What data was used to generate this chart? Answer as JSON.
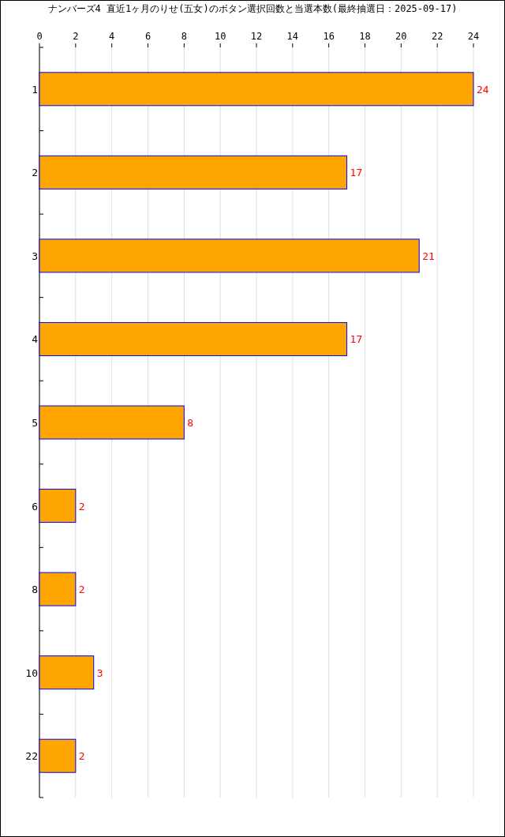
{
  "chart_data": {
    "type": "bar",
    "orientation": "horizontal",
    "title": "ナンバーズ4 直近1ヶ月のりせ(五女)のボタン選択回数と当選本数(最終抽選日：2025-09-17)",
    "categories": [
      "1",
      "2",
      "3",
      "4",
      "5",
      "6",
      "8",
      "10",
      "22"
    ],
    "values": [
      24,
      17,
      21,
      17,
      8,
      2,
      2,
      3,
      2
    ],
    "color": "#ffa500",
    "xlim": [
      0,
      24
    ],
    "xticks": [
      0,
      2,
      4,
      6,
      8,
      10,
      12,
      14,
      16,
      18,
      20,
      22,
      24
    ],
    "grid": "x",
    "data_labels": true
  }
}
